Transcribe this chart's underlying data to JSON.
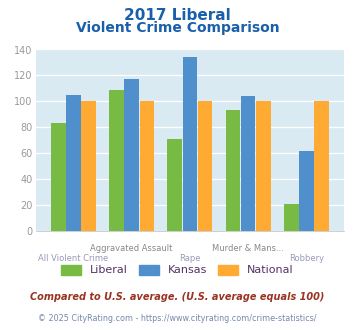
{
  "title_line1": "2017 Liberal",
  "title_line2": "Violent Crime Comparison",
  "categories_top": [
    "",
    "Aggravated Assault",
    "",
    "Murder & Mans...",
    ""
  ],
  "categories_bot": [
    "All Violent Crime",
    "",
    "Rape",
    "",
    "Robbery"
  ],
  "liberal_values": [
    83,
    109,
    71,
    93,
    21
  ],
  "kansas_values": [
    105,
    117,
    134,
    104,
    62
  ],
  "national_values": [
    100,
    100,
    100,
    100,
    100
  ],
  "liberal_color": "#77bb44",
  "kansas_color": "#4f8fcc",
  "national_color": "#ffaa33",
  "ylim": [
    0,
    140
  ],
  "yticks": [
    0,
    20,
    40,
    60,
    80,
    100,
    120,
    140
  ],
  "plot_bg": "#daeaf2",
  "title_color": "#1a5faa",
  "tick_label_color": "#999999",
  "xlabel_color_top": "#888888",
  "xlabel_color_bot": "#aaaacc",
  "footer_text1": "Compared to U.S. average. (U.S. average equals 100)",
  "footer_text2": "© 2025 CityRating.com - https://www.cityrating.com/crime-statistics/",
  "footer_color1": "#993322",
  "footer_color2": "#7788aa",
  "legend_labels": [
    "Liberal",
    "Kansas",
    "National"
  ],
  "legend_label_color": "#553366"
}
